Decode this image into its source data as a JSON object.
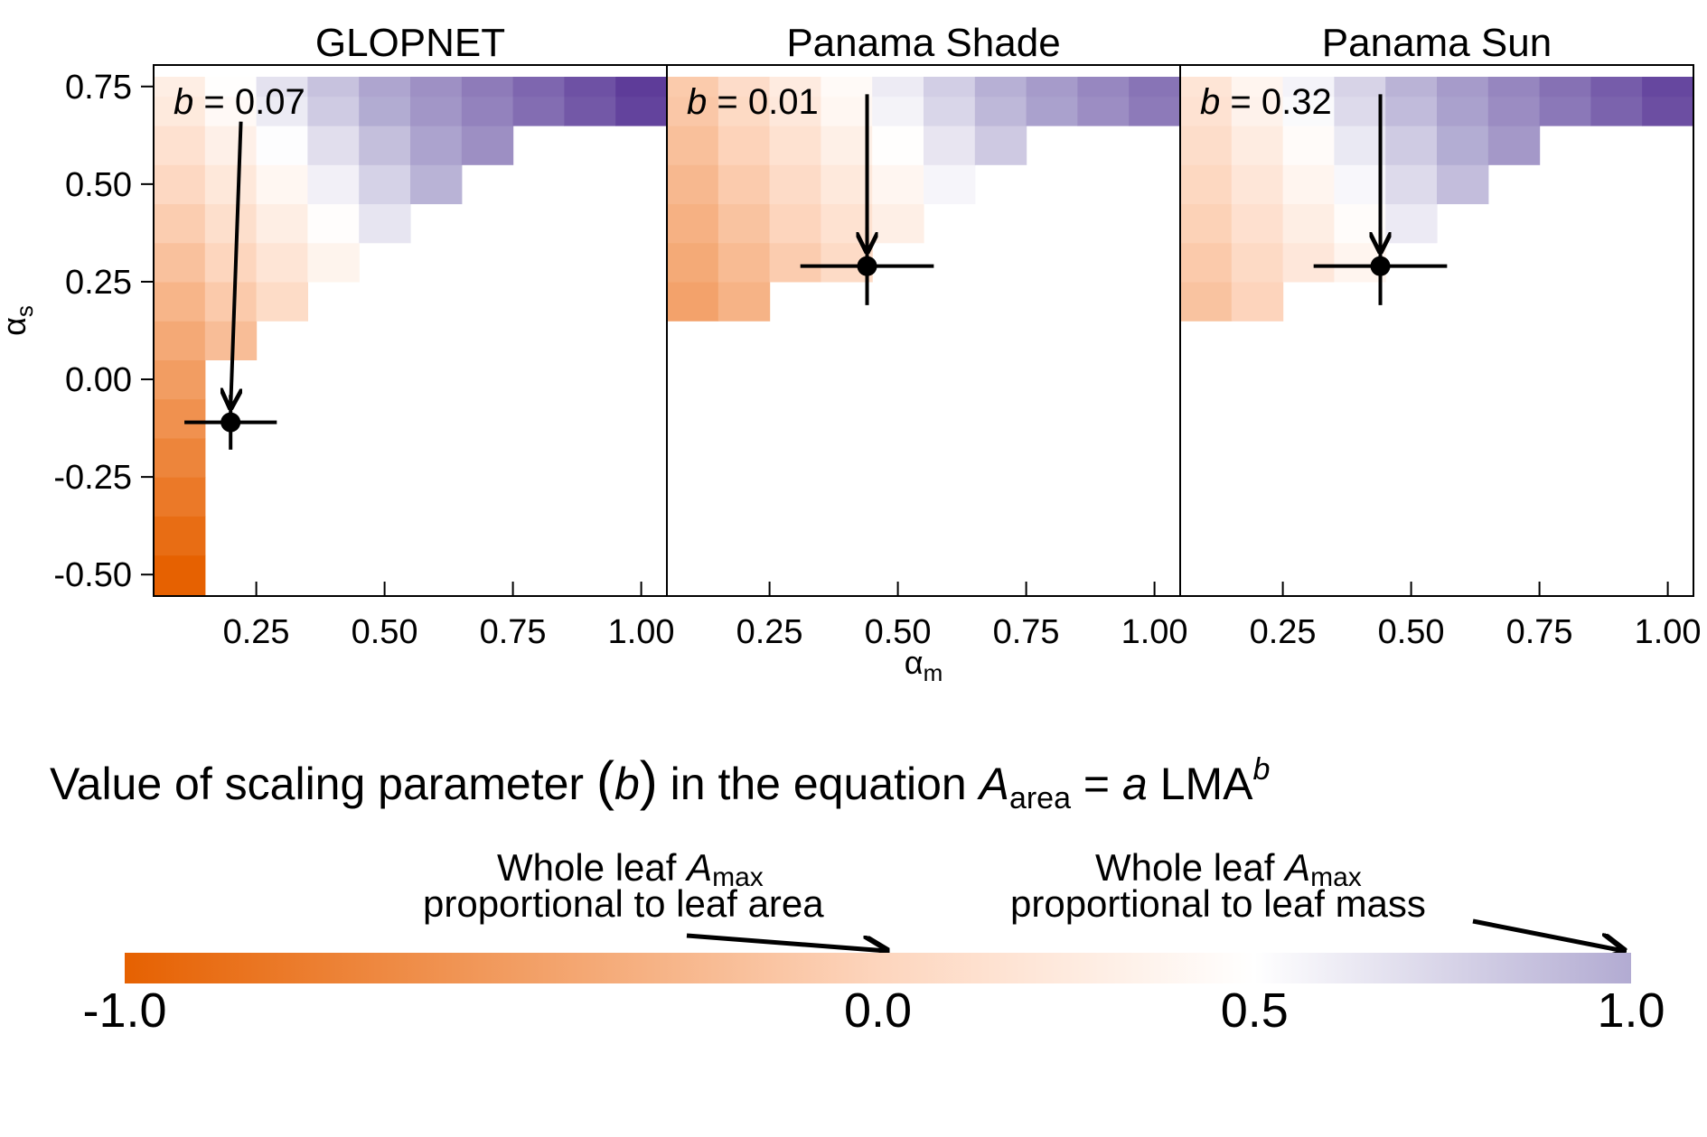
{
  "chart_data": {
    "type": "heatmap",
    "x_label": "α",
    "x_label_sub": "m",
    "y_label": "α",
    "y_label_sub": "s",
    "x_ticks": [
      "0.25",
      "0.50",
      "0.75",
      "1.00"
    ],
    "x_tick_values": [
      0.25,
      0.5,
      0.75,
      1.0
    ],
    "y_ticks": [
      "0.75",
      "0.50",
      "0.25",
      "0.00",
      "-0.25",
      "-0.50"
    ],
    "y_tick_values": [
      0.75,
      0.5,
      0.25,
      0.0,
      -0.25,
      -0.5
    ],
    "xlim": [
      0.05,
      1.05
    ],
    "ylim": [
      -0.555,
      0.805
    ],
    "grid_x": [
      0.1,
      0.2,
      0.3,
      0.4,
      0.5,
      0.6,
      0.7,
      0.8,
      0.9,
      1.0
    ],
    "grid_y": [
      -0.5,
      -0.4,
      -0.3,
      -0.2,
      -0.1,
      0.0,
      0.1,
      0.2,
      0.3,
      0.4,
      0.5,
      0.6,
      0.7
    ],
    "grid_y_plus": 0.75,
    "colorscale": {
      "stops": [
        -1.0,
        0.0,
        0.5,
        1.0
      ],
      "colors": [
        "#e66101",
        "#fdd5bd",
        "#ffffff",
        "#b2abd2"
      ],
      "deep": {
        "value": 2.0,
        "color": "#5e3c99"
      }
    },
    "panels": [
      {
        "title": "GLOPNET",
        "b_prefix": "b",
        "b_text": " = 0.07",
        "b_value": 0.07,
        "point": {
          "x": 0.2,
          "y": -0.11,
          "x_err": 0.09,
          "y_err": 0.07
        },
        "arrow_from": {
          "x": 0.22,
          "y": 0.66
        },
        "mask_min_y": [
          -0.555,
          0.08,
          0.18,
          0.22,
          0.36,
          0.46,
          0.55,
          0.65,
          0.65,
          0.65
        ],
        "b_lo": -1.0,
        "b_hi_bottom": 0.44,
        "b_hi_top": 2.0
      },
      {
        "title": "Panama Shade",
        "b_prefix": "b",
        "b_text": " = 0.01",
        "b_value": 0.01,
        "point": {
          "x": 0.44,
          "y": 0.29,
          "x_err": 0.13,
          "y_err": 0.1
        },
        "arrow_from": {
          "x": 0.44,
          "y": 0.73
        },
        "mask_min_y": [
          0.15,
          0.15,
          0.22,
          0.22,
          0.36,
          0.45,
          0.55,
          0.65,
          0.65,
          0.65
        ],
        "b_lo": -0.88,
        "b_hi_bottom": 0.0,
        "b_hi_top": 1.5
      },
      {
        "title": "Panama Sun",
        "b_prefix": "b",
        "b_text": " = 0.32",
        "b_value": 0.32,
        "point": {
          "x": 0.44,
          "y": 0.29,
          "x_err": 0.13,
          "y_err": 0.1
        },
        "arrow_from": {
          "x": 0.44,
          "y": 0.73
        },
        "mask_min_y": [
          0.15,
          0.15,
          0.22,
          0.22,
          0.36,
          0.45,
          0.55,
          0.65,
          0.65,
          0.65
        ],
        "b_lo": -0.6,
        "b_hi_bottom": 0.28,
        "b_hi_top": 1.9
      }
    ]
  },
  "legend": {
    "title_pre": "Value of scaling parameter ",
    "title_b": "b",
    "title_mid": " in the equation ",
    "title_A": "A",
    "title_A_sub": "area",
    "title_eq": " = ",
    "title_a": "a",
    "title_LMA": " LMA",
    "title_sup": "b",
    "annotation_area_line1_pre": "Whole leaf ",
    "annotation_area_line1_A": "A",
    "annotation_area_line1_sub": "max",
    "annotation_area_line2": "proportional to leaf area",
    "annotation_mass_line1_pre": "Whole leaf ",
    "annotation_mass_line1_A": "A",
    "annotation_mass_line1_sub": "max",
    "annotation_mass_line2": "proportional to leaf mass",
    "colorbar_ticks": [
      "-1.0",
      "0.0",
      "0.5",
      "1.0"
    ],
    "colorbar_tick_values": [
      -1.0,
      0.0,
      0.5,
      1.0
    ],
    "area_arrow_value": 0.0,
    "mass_arrow_value": 1.0
  }
}
